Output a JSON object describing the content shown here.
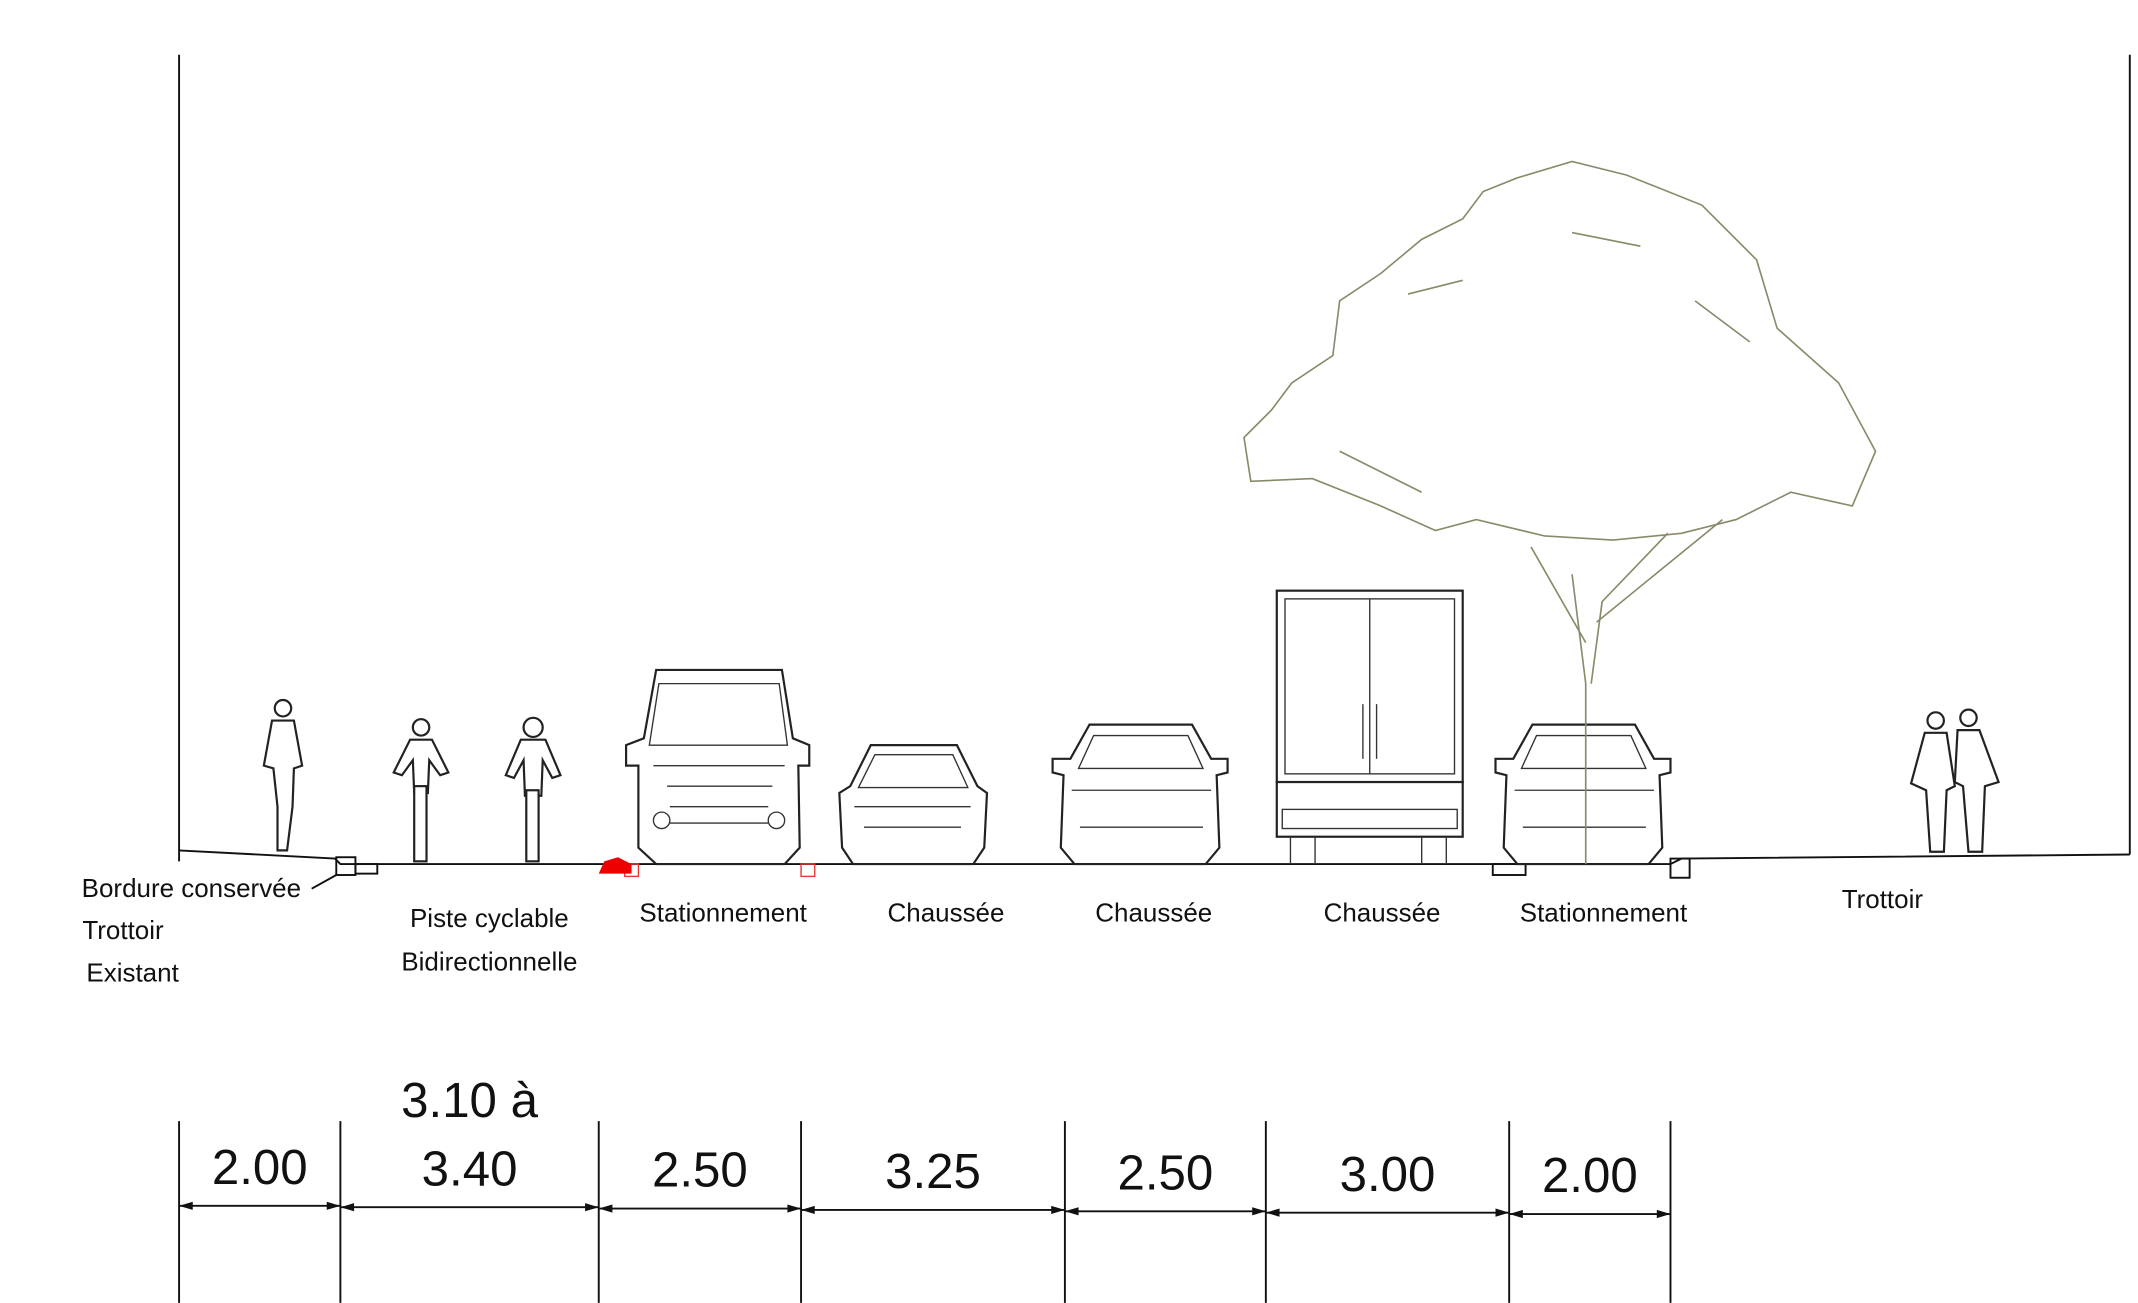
{
  "labels": [
    {
      "lines": [
        "Bordure conservée",
        "Trottoir",
        "Existant"
      ]
    },
    {
      "lines": [
        "Piste cyclable",
        "Bidirectionnelle"
      ]
    },
    {
      "lines": [
        "Stationnement"
      ]
    },
    {
      "lines": [
        "Chaussée"
      ]
    },
    {
      "lines": [
        "Chaussée"
      ]
    },
    {
      "lines": [
        "Chaussée"
      ]
    },
    {
      "lines": [
        "Stationnement"
      ]
    },
    {
      "lines": [
        "Trottoir"
      ]
    }
  ],
  "dimensions": [
    {
      "lines": [
        "2.00"
      ]
    },
    {
      "lines": [
        "3.10 à",
        "3.40"
      ]
    },
    {
      "lines": [
        "2.50"
      ]
    },
    {
      "lines": [
        "3.25"
      ]
    },
    {
      "lines": [
        "2.50"
      ]
    },
    {
      "lines": [
        "3.00"
      ]
    },
    {
      "lines": [
        "2.00"
      ]
    }
  ]
}
